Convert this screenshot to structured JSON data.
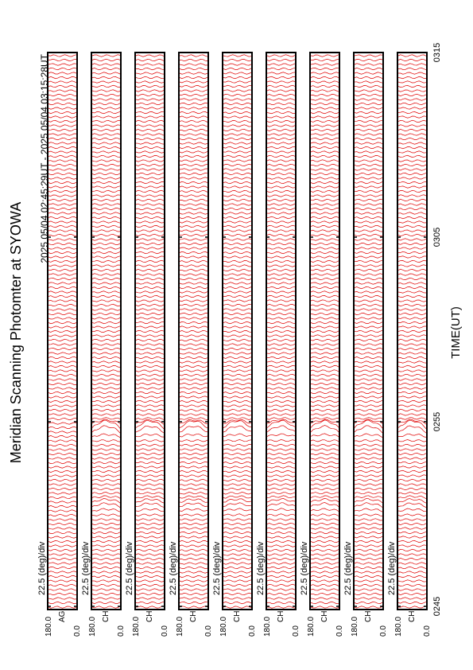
{
  "chart_data": {
    "type": "msp-stack",
    "title": "Meridian Scanning Photomter at SYOWA",
    "subtitle": "2025 05/04 02:45:29UT - 2025 05/04 03:15:28UT",
    "x_label": "TIME(UT)",
    "xlim": [
      165,
      195
    ],
    "xticks": [
      {
        "value": 165,
        "label": "0245"
      },
      {
        "value": 175,
        "label": "0255"
      },
      {
        "value": 185,
        "label": "0305"
      },
      {
        "value": 195,
        "label": "0315"
      }
    ],
    "scale_label": "22.5 (deg)/div",
    "angle_top": "180.0",
    "angle_bottom": "0.0",
    "color": "#e00000",
    "panels": [
      {
        "name": "AG"
      },
      {
        "name": "CH"
      },
      {
        "name": "CH"
      },
      {
        "name": "CH"
      },
      {
        "name": "CH"
      },
      {
        "name": "CH"
      },
      {
        "name": "CH"
      },
      {
        "name": "CH"
      },
      {
        "name": "CH"
      }
    ]
  }
}
